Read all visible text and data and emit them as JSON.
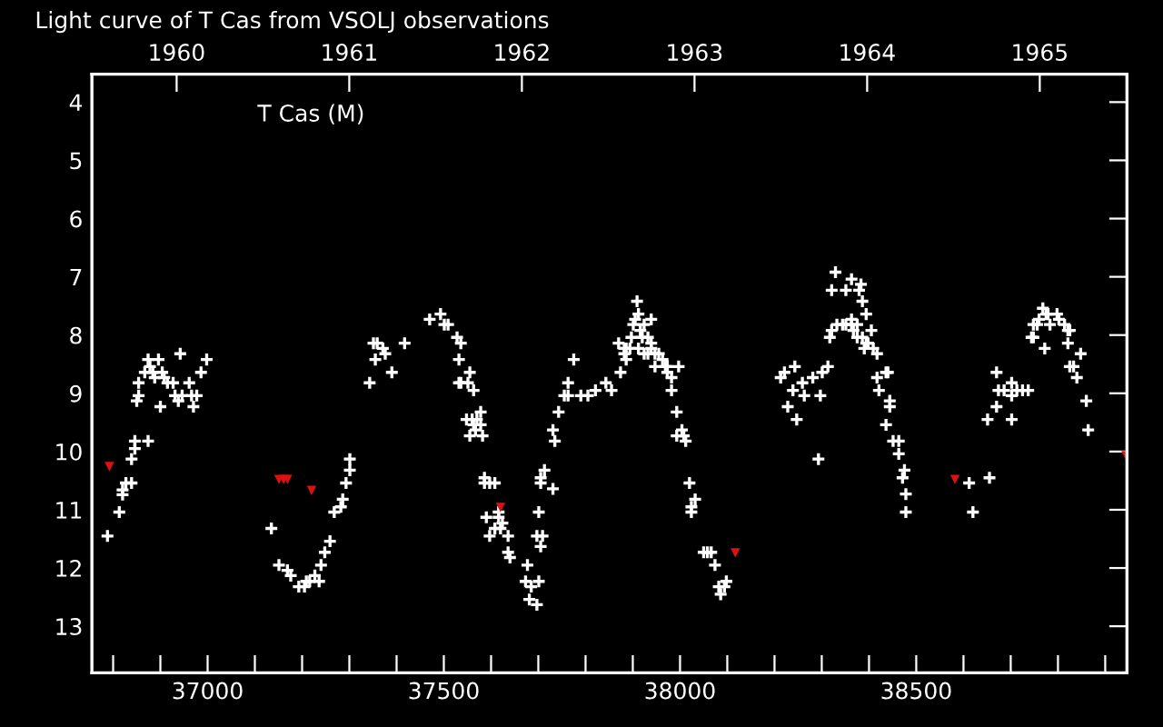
{
  "chart_data": {
    "type": "scatter",
    "title": "Light curve of T Cas from VSOLJ observations",
    "annotations": [
      "T Cas (M)"
    ],
    "xlim": [
      36755,
      38946
    ],
    "ylim": [
      13.8,
      3.52
    ],
    "xticks": [
      {
        "value": 36800,
        "label": null
      },
      {
        "value": 36900,
        "label": null
      },
      37000,
      {
        "value": 37100,
        "label": null
      },
      {
        "value": 37200,
        "label": null
      },
      {
        "value": 37300,
        "label": null
      },
      {
        "value": 37400,
        "label": null
      },
      37500,
      {
        "value": 37600,
        "label": null
      },
      {
        "value": 37700,
        "label": null
      },
      {
        "value": 37800,
        "label": null
      },
      {
        "value": 37900,
        "label": null
      },
      38000,
      {
        "value": 38100,
        "label": null
      },
      {
        "value": 38200,
        "label": null
      },
      {
        "value": 38300,
        "label": null
      },
      {
        "value": 38400,
        "label": null
      },
      38500,
      {
        "value": 38600,
        "label": null
      },
      {
        "value": 38700,
        "label": null
      },
      {
        "value": 38800,
        "label": null
      },
      {
        "value": 38900,
        "label": null
      }
    ],
    "x2lim": [
      1959.509,
      1965.505
    ],
    "x2ticks": [
      1960,
      1961,
      1962,
      1963,
      1964,
      1965
    ],
    "yticks": [
      4,
      5,
      6,
      7,
      8,
      9,
      10,
      11,
      12,
      13
    ],
    "grid": false,
    "series": [
      {
        "color": "#ffffff",
        "marker": "cross",
        "x": [
          36788,
          36813,
          36820,
          36820,
          36827,
          36839,
          36839,
          36846,
          36846,
          36874,
          36850,
          36854,
          36854,
          36874,
          36867,
          36878,
          36884,
          36888,
          36896,
          36904,
          36900,
          36908,
          36915,
          36927,
          36942,
          36931,
          36938,
          36946,
          36961,
          36966,
          36970,
          36977,
          36986,
          36998,
          37135,
          37151,
          37169,
          37176,
          37193,
          37205,
          37209,
          37216,
          37227,
          37236,
          37240,
          37248,
          37259,
          37268,
          37282,
          37286,
          37293,
          37301,
          37301,
          37343,
          37351,
          37359,
          37355,
          37371,
          37376,
          37390,
          37417,
          37470,
          37493,
          37501,
          37509,
          37528,
          37536,
          37532,
          37555,
          37532,
          37536,
          37551,
          37563,
          37578,
          37548,
          37560,
          37570,
          37563,
          37578,
          37567,
          37555,
          37582,
          37586,
          37586,
          37597,
          37608,
          37590,
          37616,
          37616,
          37624,
          37608,
          37620,
          37597,
          37636,
          37636,
          37640,
          37677,
          37673,
          37685,
          37701,
          37681,
          37697,
          37705,
          37697,
          37709,
          37701,
          37705,
          37705,
          37713,
          37731,
          37735,
          37731,
          37743,
          37763,
          37755,
          37763,
          37775,
          37790,
          37805,
          37821,
          37843,
          37855,
          37870,
          37874,
          37882,
          37882,
          37886,
          37894,
          37886,
          37897,
          37901,
          37905,
          37912,
          37909,
          37924,
          37916,
          37939,
          37920,
          37932,
          37912,
          37924,
          37932,
          37939,
          37939,
          37947,
          37955,
          37947,
          37963,
          37969,
          37973,
          37973,
          37982,
          37997,
          37982,
          37993,
          38004,
          37993,
          38008,
          38012,
          38020,
          38032,
          38024,
          38024,
          38050,
          38058,
          38066,
          38074,
          38098,
          38082,
          38094,
          38086,
          38213,
          38221,
          38243,
          38259,
          38228,
          38239,
          38263,
          38247,
          38281,
          38301,
          38297,
          38313,
          38293,
          38317,
          38321,
          38321,
          38329,
          38332,
          38344,
          38351,
          38351,
          38363,
          38375,
          38363,
          38363,
          38367,
          38379,
          38383,
          38386,
          38375,
          38386,
          38394,
          38394,
          38398,
          38390,
          38405,
          38409,
          38417,
          38436,
          38440,
          38417,
          38421,
          38444,
          38444,
          38436,
          38451,
          38463,
          38463,
          38475,
          38471,
          38478,
          38478,
          38612,
          38620,
          38655,
          38651,
          38670,
          38670,
          38674,
          38686,
          38702,
          38702,
          38702,
          38713,
          38725,
          38737,
          38744,
          38748,
          38748,
          38756,
          38760,
          38768,
          38775,
          38779,
          38783,
          38772,
          38798,
          38802,
          38814,
          38821,
          38825,
          38821,
          38848,
          38825,
          38833,
          38840,
          38860,
          38864
        ],
        "values": [
          11.45,
          11.04,
          10.66,
          10.74,
          10.54,
          10.54,
          10.13,
          9.95,
          9.82,
          9.82,
          9.13,
          9.04,
          8.82,
          8.42,
          8.64,
          8.54,
          8.64,
          8.73,
          8.42,
          8.64,
          9.23,
          8.73,
          8.82,
          8.82,
          8.32,
          9.04,
          9.13,
          9.04,
          8.82,
          9.04,
          9.23,
          9.04,
          8.64,
          8.42,
          11.32,
          11.95,
          12.04,
          12.13,
          12.32,
          12.32,
          12.23,
          12.23,
          12.13,
          12.23,
          11.95,
          11.73,
          11.54,
          11.04,
          10.95,
          10.82,
          10.54,
          10.32,
          10.13,
          8.82,
          8.14,
          8.14,
          8.42,
          8.23,
          8.32,
          8.64,
          8.14,
          7.73,
          7.64,
          7.82,
          7.82,
          8.04,
          8.14,
          8.42,
          8.64,
          8.82,
          8.82,
          8.82,
          8.95,
          9.32,
          9.45,
          9.45,
          9.45,
          9.54,
          9.54,
          9.63,
          9.73,
          9.73,
          10.45,
          10.54,
          10.54,
          10.54,
          11.13,
          11.04,
          11.13,
          11.23,
          11.32,
          11.32,
          11.45,
          11.45,
          11.73,
          11.82,
          11.95,
          12.23,
          12.32,
          12.23,
          12.54,
          12.63,
          11.63,
          11.45,
          11.45,
          11.04,
          10.45,
          10.54,
          10.32,
          10.64,
          9.82,
          9.63,
          9.32,
          8.82,
          9.04,
          9.04,
          8.42,
          9.04,
          9.04,
          8.95,
          8.82,
          8.95,
          8.14,
          8.64,
          8.23,
          8.32,
          8.23,
          8.23,
          8.42,
          8.04,
          7.82,
          7.73,
          7.64,
          7.42,
          7.82,
          7.92,
          7.73,
          8.04,
          8.04,
          8.23,
          8.32,
          8.32,
          8.14,
          8.23,
          8.32,
          8.32,
          8.54,
          8.42,
          8.54,
          8.54,
          8.64,
          8.73,
          8.54,
          8.95,
          9.32,
          9.63,
          9.73,
          9.73,
          9.82,
          10.54,
          10.82,
          10.95,
          11.04,
          11.73,
          11.73,
          11.73,
          11.95,
          12.23,
          12.32,
          12.32,
          12.45,
          8.73,
          8.64,
          8.54,
          8.82,
          9.23,
          8.95,
          9.04,
          9.45,
          8.73,
          8.64,
          9.04,
          8.54,
          10.13,
          8.04,
          7.92,
          7.23,
          6.92,
          7.82,
          7.82,
          7.23,
          7.82,
          7.82,
          7.82,
          7.04,
          7.73,
          7.92,
          7.23,
          7.13,
          7.42,
          8.04,
          8.04,
          7.64,
          8.14,
          8.14,
          8.23,
          7.92,
          8.23,
          8.32,
          8.64,
          8.64,
          8.73,
          8.95,
          9.13,
          9.23,
          9.54,
          9.82,
          9.82,
          10.04,
          10.32,
          10.45,
          10.73,
          11.04,
          10.54,
          11.04,
          10.45,
          9.45,
          9.23,
          8.64,
          8.95,
          8.95,
          8.82,
          9.04,
          9.45,
          8.95,
          8.95,
          8.95,
          8.04,
          8.04,
          7.82,
          7.82,
          7.73,
          7.54,
          7.64,
          7.64,
          7.82,
          8.23,
          7.64,
          7.73,
          7.82,
          7.92,
          7.92,
          8.14,
          8.32,
          8.54,
          8.54,
          8.73,
          9.13,
          9.63
        ]
      },
      {
        "color": "#e01010",
        "marker": "triangle",
        "x": [
          36792,
          37151,
          37161,
          37169,
          37220,
          37620,
          38117,
          38582,
          38944
        ],
        "values": [
          10.26,
          10.48,
          10.48,
          10.48,
          10.67,
          10.96,
          11.74,
          10.48,
          10.07
        ]
      }
    ]
  }
}
